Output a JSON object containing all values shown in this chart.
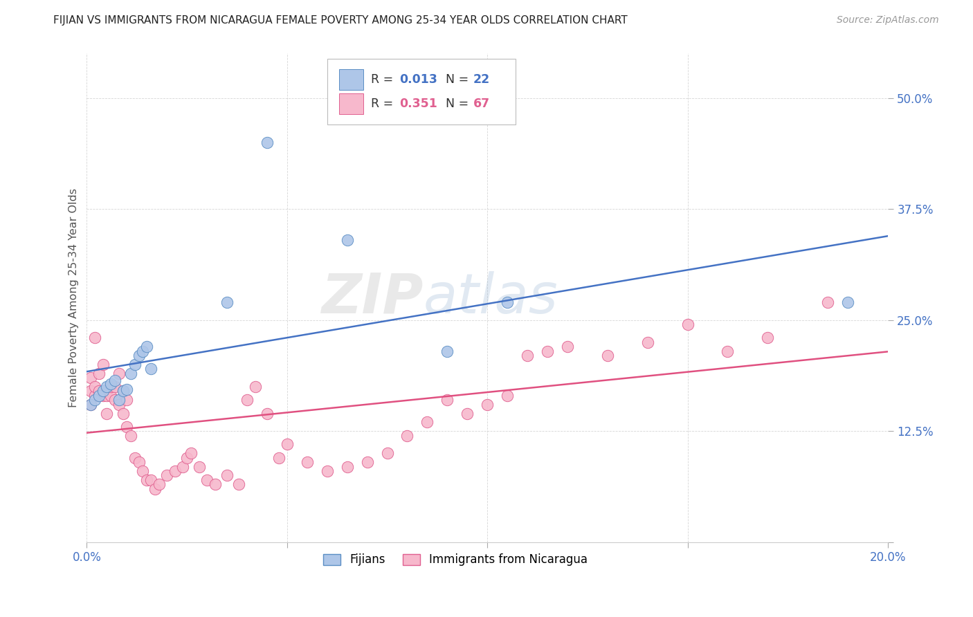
{
  "title": "FIJIAN VS IMMIGRANTS FROM NICARAGUA FEMALE POVERTY AMONG 25-34 YEAR OLDS CORRELATION CHART",
  "source": "Source: ZipAtlas.com",
  "ylabel": "Female Poverty Among 25-34 Year Olds",
  "xlim": [
    0.0,
    0.2
  ],
  "ylim": [
    0.0,
    0.55
  ],
  "xticks": [
    0.0,
    0.05,
    0.1,
    0.15,
    0.2
  ],
  "xtick_labels": [
    "0.0%",
    "",
    "",
    "",
    "20.0%"
  ],
  "ytick_labels": [
    "",
    "12.5%",
    "25.0%",
    "37.5%",
    "50.0%"
  ],
  "yticks": [
    0.0,
    0.125,
    0.25,
    0.375,
    0.5
  ],
  "label1": "Fijians",
  "label2": "Immigrants from Nicaragua",
  "color1": "#aec6e8",
  "color2": "#f7b8cc",
  "edge_color1": "#5b8ec4",
  "edge_color2": "#e06090",
  "line_color1": "#4472c4",
  "line_color2": "#e05080",
  "watermark_zip": "ZIP",
  "watermark_atlas": "atlas",
  "fijian_x": [
    0.001,
    0.002,
    0.003,
    0.004,
    0.005,
    0.006,
    0.007,
    0.008,
    0.009,
    0.01,
    0.011,
    0.012,
    0.013,
    0.014,
    0.015,
    0.016,
    0.035,
    0.045,
    0.065,
    0.09,
    0.105,
    0.19
  ],
  "fijian_y": [
    0.155,
    0.16,
    0.165,
    0.17,
    0.175,
    0.178,
    0.182,
    0.16,
    0.17,
    0.172,
    0.19,
    0.2,
    0.21,
    0.215,
    0.22,
    0.195,
    0.27,
    0.45,
    0.34,
    0.215,
    0.27,
    0.27
  ],
  "nicaragua_x": [
    0.001,
    0.001,
    0.001,
    0.002,
    0.002,
    0.002,
    0.003,
    0.003,
    0.003,
    0.004,
    0.004,
    0.005,
    0.005,
    0.005,
    0.006,
    0.006,
    0.007,
    0.007,
    0.008,
    0.008,
    0.009,
    0.009,
    0.01,
    0.01,
    0.011,
    0.012,
    0.013,
    0.014,
    0.015,
    0.016,
    0.017,
    0.018,
    0.02,
    0.022,
    0.024,
    0.025,
    0.026,
    0.028,
    0.03,
    0.032,
    0.035,
    0.038,
    0.04,
    0.042,
    0.045,
    0.048,
    0.05,
    0.055,
    0.06,
    0.065,
    0.07,
    0.075,
    0.08,
    0.085,
    0.09,
    0.095,
    0.1,
    0.105,
    0.11,
    0.115,
    0.12,
    0.13,
    0.14,
    0.15,
    0.16,
    0.17,
    0.185
  ],
  "nicaragua_y": [
    0.155,
    0.17,
    0.185,
    0.165,
    0.175,
    0.23,
    0.165,
    0.17,
    0.19,
    0.165,
    0.2,
    0.17,
    0.145,
    0.165,
    0.165,
    0.175,
    0.175,
    0.16,
    0.155,
    0.19,
    0.145,
    0.17,
    0.13,
    0.16,
    0.12,
    0.095,
    0.09,
    0.08,
    0.07,
    0.07,
    0.06,
    0.065,
    0.075,
    0.08,
    0.085,
    0.095,
    0.1,
    0.085,
    0.07,
    0.065,
    0.075,
    0.065,
    0.16,
    0.175,
    0.145,
    0.095,
    0.11,
    0.09,
    0.08,
    0.085,
    0.09,
    0.1,
    0.12,
    0.135,
    0.16,
    0.145,
    0.155,
    0.165,
    0.21,
    0.215,
    0.22,
    0.21,
    0.225,
    0.245,
    0.215,
    0.23,
    0.27
  ]
}
